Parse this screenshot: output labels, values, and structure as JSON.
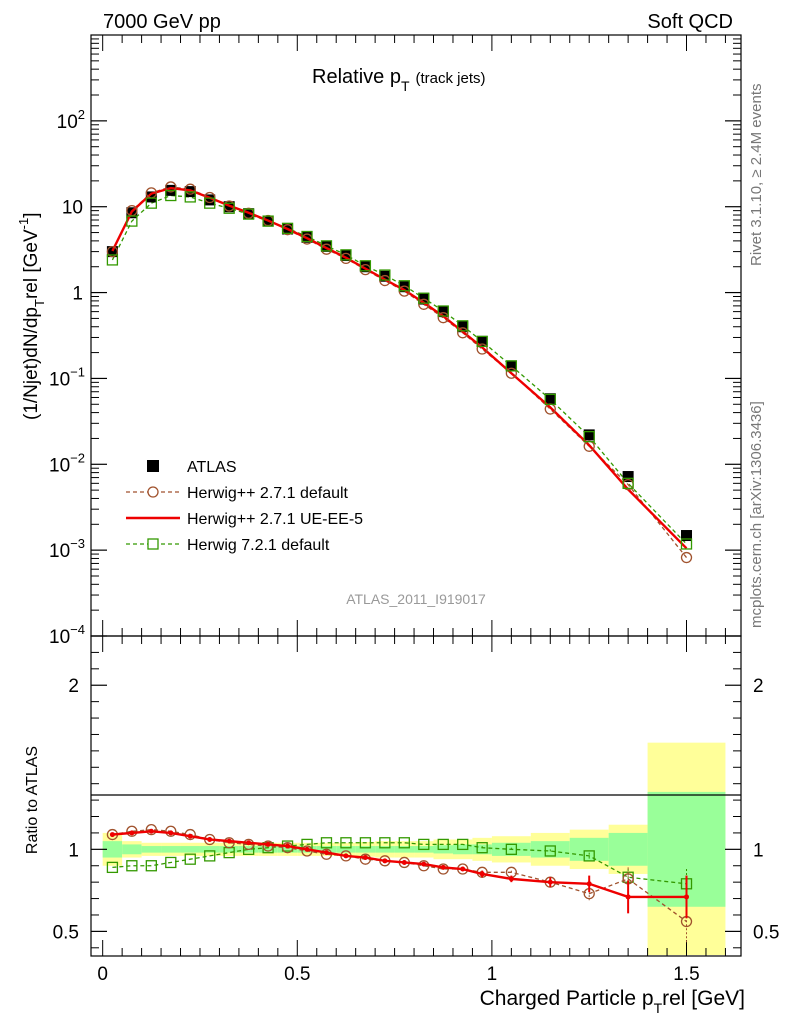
{
  "header": {
    "left_label": "7000 GeV pp",
    "right_label": "Soft QCD"
  },
  "side_labels": {
    "rivet": "Rivet 3.1.10, ≥ 2.4M events",
    "mcplots": "mcplots.cern.ch [arXiv:1306.3436]"
  },
  "chart_data": [
    {
      "type": "line",
      "panel": "main",
      "title": "Relative p",
      "title_sub": "T",
      "title_note": "(track jets)",
      "ylabel_parts": [
        "(1/Njet)dN/dp",
        "T",
        "rel [GeV",
        "-1",
        "]"
      ],
      "ylabel": "(1/Njet)dN/dp_T^rel [GeV^-1]",
      "yscale": "log",
      "ylim": [
        0.0001,
        1000
      ],
      "xlim": [
        -0.03,
        1.64
      ],
      "yticks": [
        {
          "v": 0.0001,
          "b": "10",
          "e": "−4"
        },
        {
          "v": 0.001,
          "b": "10",
          "e": "−3"
        },
        {
          "v": 0.01,
          "b": "10",
          "e": "−2"
        },
        {
          "v": 0.1,
          "b": "10",
          "e": "−1"
        },
        {
          "v": 1,
          "b": "1",
          "e": ""
        },
        {
          "v": 10,
          "b": "10",
          "e": ""
        },
        {
          "v": 100,
          "b": "10",
          "e": "2"
        }
      ],
      "analysis_label": "ATLAS_2011_I919017",
      "legend": [
        {
          "label": "ATLAS",
          "series": "atlas"
        },
        {
          "label": "Herwig++ 2.7.1 default",
          "series": "hw_default"
        },
        {
          "label": "Herwig++ 2.7.1 UE-EE-5",
          "series": "hw_ueee5"
        },
        {
          "label": "Herwig 7.2.1 default",
          "series": "hw7"
        }
      ],
      "x": [
        0.025,
        0.075,
        0.125,
        0.175,
        0.225,
        0.275,
        0.325,
        0.375,
        0.425,
        0.475,
        0.525,
        0.575,
        0.625,
        0.675,
        0.725,
        0.775,
        0.825,
        0.875,
        0.925,
        0.975,
        1.05,
        1.15,
        1.25,
        1.35,
        1.5
      ],
      "series": [
        {
          "name": "atlas",
          "label": "ATLAS",
          "color": "#000000",
          "values": [
            3.0,
            8.5,
            13.0,
            15.5,
            15.0,
            12.0,
            10.0,
            8.3,
            6.8,
            5.5,
            4.4,
            3.45,
            2.7,
            2.0,
            1.55,
            1.17,
            0.84,
            0.6,
            0.4,
            0.27,
            0.14,
            0.058,
            0.022,
            0.0072,
            0.00148
          ]
        },
        {
          "name": "hw_default",
          "label": "Herwig++ 2.7.1 default",
          "color": "#a0522d",
          "values": [
            3.0,
            9.0,
            14.5,
            17.0,
            16.0,
            12.8,
            10.2,
            8.4,
            6.9,
            5.4,
            4.2,
            3.2,
            2.5,
            1.85,
            1.38,
            1.04,
            0.73,
            0.51,
            0.34,
            0.22,
            0.115,
            0.044,
            0.0162,
            0.0058,
            0.00082
          ]
        },
        {
          "name": "hw_ueee5",
          "label": "Herwig++ 2.7.1 UE-EE-5",
          "color": "#ee0000",
          "values": [
            3.05,
            8.8,
            14.2,
            16.5,
            15.5,
            12.7,
            10.3,
            8.5,
            6.9,
            5.5,
            4.3,
            3.3,
            2.55,
            1.9,
            1.42,
            1.07,
            0.76,
            0.53,
            0.35,
            0.23,
            0.115,
            0.046,
            0.0167,
            0.0051,
            0.00105
          ]
        },
        {
          "name": "hw7",
          "label": "Herwig 7.2.1 default",
          "color": "#339900",
          "values": [
            2.4,
            6.8,
            11.0,
            13.5,
            13.0,
            11.0,
            9.6,
            8.2,
            6.8,
            5.6,
            4.5,
            3.5,
            2.75,
            2.05,
            1.6,
            1.2,
            0.86,
            0.61,
            0.41,
            0.27,
            0.14,
            0.057,
            0.021,
            0.006,
            0.00118
          ]
        }
      ]
    },
    {
      "type": "line",
      "panel": "ratio",
      "ylabel": "Ratio to ATLAS",
      "xlabel_parts": [
        "Charged Particle p",
        "T",
        "rel [GeV]"
      ],
      "xlabel": "Charged Particle p_T^rel [GeV]",
      "ylim": [
        0.35,
        2.3
      ],
      "xlim": [
        -0.03,
        1.64
      ],
      "xticks": [
        {
          "v": 0,
          "label": "0"
        },
        {
          "v": 0.5,
          "label": "0.5"
        },
        {
          "v": 1,
          "label": "1"
        },
        {
          "v": 1.5,
          "label": "1.5"
        }
      ],
      "yticks": [
        {
          "v": 0.5,
          "label": "0.5"
        },
        {
          "v": 1,
          "label": "1"
        },
        {
          "v": 2,
          "label": "2"
        }
      ],
      "bins": [
        [
          0.0,
          0.05
        ],
        [
          0.05,
          0.1
        ],
        [
          0.1,
          0.15
        ],
        [
          0.15,
          0.2
        ],
        [
          0.2,
          0.25
        ],
        [
          0.25,
          0.3
        ],
        [
          0.3,
          0.35
        ],
        [
          0.35,
          0.4
        ],
        [
          0.4,
          0.45
        ],
        [
          0.45,
          0.5
        ],
        [
          0.5,
          0.55
        ],
        [
          0.55,
          0.6
        ],
        [
          0.6,
          0.65
        ],
        [
          0.65,
          0.7
        ],
        [
          0.7,
          0.75
        ],
        [
          0.75,
          0.8
        ],
        [
          0.8,
          0.85
        ],
        [
          0.85,
          0.9
        ],
        [
          0.9,
          0.95
        ],
        [
          0.95,
          1.0
        ],
        [
          1.0,
          1.1
        ],
        [
          1.1,
          1.2
        ],
        [
          1.2,
          1.3
        ],
        [
          1.3,
          1.4
        ],
        [
          1.4,
          1.6
        ]
      ],
      "band_inner": [
        0.05,
        0.03,
        0.02,
        0.02,
        0.02,
        0.02,
        0.02,
        0.02,
        0.02,
        0.02,
        0.02,
        0.02,
        0.02,
        0.02,
        0.02,
        0.02,
        0.02,
        0.025,
        0.03,
        0.03,
        0.04,
        0.05,
        0.07,
        0.1,
        0.35
      ],
      "band_outer": [
        0.1,
        0.05,
        0.04,
        0.04,
        0.04,
        0.04,
        0.04,
        0.04,
        0.04,
        0.04,
        0.04,
        0.04,
        0.04,
        0.045,
        0.05,
        0.05,
        0.05,
        0.06,
        0.06,
        0.07,
        0.08,
        0.1,
        0.12,
        0.15,
        0.65
      ],
      "band_colors": {
        "inner": "#99ff99",
        "outer": "#ffff99"
      },
      "x": [
        0.025,
        0.075,
        0.125,
        0.175,
        0.225,
        0.275,
        0.325,
        0.375,
        0.425,
        0.475,
        0.525,
        0.575,
        0.625,
        0.675,
        0.725,
        0.775,
        0.825,
        0.875,
        0.925,
        0.975,
        1.05,
        1.15,
        1.25,
        1.35,
        1.5
      ],
      "series": [
        {
          "name": "hw_default",
          "color": "#a0522d",
          "values": [
            1.09,
            1.11,
            1.12,
            1.11,
            1.09,
            1.06,
            1.04,
            1.03,
            1.02,
            1.01,
            0.99,
            0.97,
            0.96,
            0.94,
            0.93,
            0.92,
            0.9,
            0.88,
            0.88,
            0.86,
            0.86,
            0.8,
            0.73,
            0.82,
            0.56
          ],
          "errors": [
            0,
            0,
            0,
            0,
            0,
            0,
            0,
            0,
            0,
            0,
            0,
            0,
            0,
            0,
            0,
            0,
            0,
            0,
            0,
            0.01,
            0.01,
            0.02,
            0.04,
            0.07,
            0.13
          ]
        },
        {
          "name": "hw_ueee5",
          "color": "#ee0000",
          "values": [
            1.09,
            1.1,
            1.11,
            1.1,
            1.08,
            1.06,
            1.05,
            1.04,
            1.03,
            1.02,
            1.0,
            0.98,
            0.96,
            0.95,
            0.93,
            0.92,
            0.91,
            0.89,
            0.88,
            0.85,
            0.82,
            0.8,
            0.79,
            0.71,
            0.71
          ],
          "errors": [
            0,
            0,
            0,
            0,
            0,
            0,
            0,
            0,
            0,
            0,
            0,
            0,
            0,
            0,
            0,
            0,
            0.01,
            0.01,
            0.01,
            0.02,
            0.02,
            0.03,
            0.05,
            0.1,
            0.13
          ]
        },
        {
          "name": "hw7",
          "color": "#339900",
          "values": [
            0.89,
            0.9,
            0.9,
            0.92,
            0.94,
            0.96,
            0.98,
            1.0,
            1.01,
            1.02,
            1.03,
            1.04,
            1.04,
            1.04,
            1.04,
            1.04,
            1.03,
            1.03,
            1.03,
            1.01,
            1.0,
            0.99,
            0.96,
            0.83,
            0.79
          ],
          "errors": [
            0,
            0,
            0,
            0,
            0,
            0,
            0,
            0,
            0,
            0,
            0,
            0,
            0,
            0,
            0,
            0,
            0,
            0,
            0,
            0.01,
            0.01,
            0.01,
            0.02,
            0.05,
            0.09
          ]
        }
      ]
    }
  ]
}
